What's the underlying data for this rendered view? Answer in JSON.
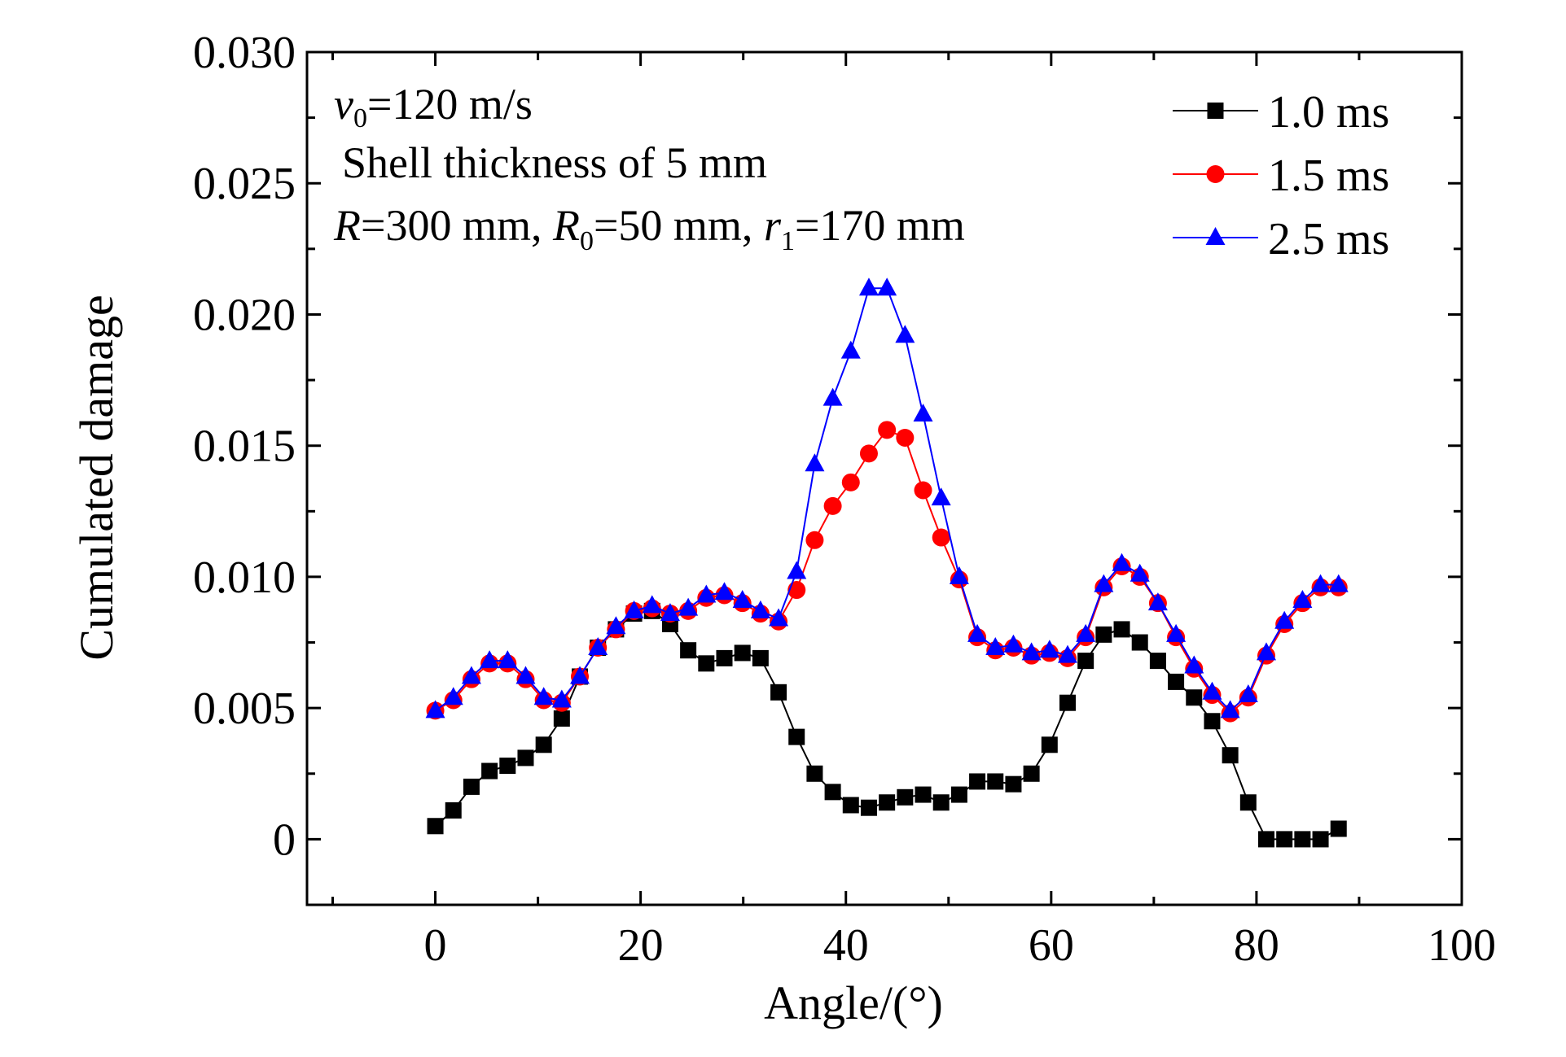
{
  "chart_data": {
    "type": "line",
    "xlabel": "Angle/(°)",
    "ylabel": "Cumulated damage",
    "xlim": [
      -12.5,
      100
    ],
    "ylim": [
      -0.0025,
      0.03
    ],
    "xticks": [
      0,
      20,
      40,
      60,
      80,
      100
    ],
    "xtick_labels": [
      "0",
      "20",
      "40",
      "60",
      "80",
      "100"
    ],
    "yticks": [
      0,
      0.005,
      0.01,
      0.015,
      0.02,
      0.025,
      0.03
    ],
    "ytick_labels": [
      "0",
      "0.005",
      "0.010",
      "0.015",
      "0.020",
      "0.025",
      "0.030"
    ],
    "grid": false,
    "legend_position": "top-right",
    "annotations": {
      "line1_var": "v",
      "line1_sub": "0",
      "line1_rest": "=120 m/s",
      "line2": "Shell thickness of 5 mm",
      "line3_R": "R",
      "line3_a": "=300 mm, ",
      "line3_R0": "R",
      "line3_R0_sub": "0",
      "line3_b": "=50 mm, ",
      "line3_r1": "r",
      "line3_r1_sub": "1",
      "line3_c": "=170 mm"
    },
    "x": [
      0,
      1.76,
      3.52,
      5.28,
      7.04,
      8.8,
      10.56,
      12.32,
      14.08,
      15.84,
      17.6,
      19.36,
      21.12,
      22.88,
      24.64,
      26.4,
      28.16,
      29.92,
      31.68,
      33.44,
      35.2,
      36.96,
      38.72,
      40.48,
      42.24,
      44.0,
      45.76,
      47.52,
      49.28,
      51.04,
      52.8,
      54.56,
      56.32,
      58.08,
      59.84,
      61.6,
      63.36,
      65.12,
      66.88,
      68.64,
      70.4,
      72.16,
      73.92,
      75.68,
      77.44,
      79.2,
      80.96,
      82.72,
      84.48,
      86.24,
      88.0
    ],
    "series": [
      {
        "name": "1.0 ms",
        "color": "#000000",
        "marker": "square",
        "values": [
          0.0005,
          0.0011,
          0.002,
          0.0026,
          0.0028,
          0.0031,
          0.0036,
          0.0046,
          0.0062,
          0.0073,
          0.008,
          0.0086,
          0.0087,
          0.0082,
          0.0072,
          0.0067,
          0.0069,
          0.0071,
          0.0069,
          0.0056,
          0.0039,
          0.0025,
          0.0018,
          0.0013,
          0.0012,
          0.0014,
          0.0016,
          0.0017,
          0.0014,
          0.0017,
          0.0022,
          0.0022,
          0.0021,
          0.0025,
          0.0036,
          0.0052,
          0.0068,
          0.0078,
          0.008,
          0.0075,
          0.0068,
          0.006,
          0.0054,
          0.0045,
          0.0032,
          0.0014,
          0.0,
          0.0,
          0.0,
          0.0,
          0.0004
        ]
      },
      {
        "name": "1.5 ms",
        "color": "#ff0000",
        "marker": "circle",
        "values": [
          0.0049,
          0.0053,
          0.0061,
          0.0067,
          0.0067,
          0.0061,
          0.0053,
          0.0052,
          0.0062,
          0.0073,
          0.008,
          0.0087,
          0.0088,
          0.0086,
          0.0087,
          0.0092,
          0.0093,
          0.009,
          0.0086,
          0.0083,
          0.0095,
          0.0114,
          0.0127,
          0.0136,
          0.0147,
          0.0156,
          0.0153,
          0.0133,
          0.0115,
          0.0099,
          0.0077,
          0.0072,
          0.0073,
          0.007,
          0.0071,
          0.0069,
          0.0077,
          0.0096,
          0.0104,
          0.01,
          0.009,
          0.0077,
          0.0065,
          0.0055,
          0.0048,
          0.0054,
          0.007,
          0.0082,
          0.009,
          0.0096,
          0.0096
        ]
      },
      {
        "name": "2.5 ms",
        "color": "#0000ff",
        "marker": "triangle",
        "values": [
          0.0049,
          0.0054,
          0.0062,
          0.0068,
          0.0068,
          0.0062,
          0.0054,
          0.0053,
          0.0062,
          0.0073,
          0.0081,
          0.0087,
          0.0089,
          0.0086,
          0.0088,
          0.0093,
          0.0094,
          0.0091,
          0.0087,
          0.0084,
          0.0102,
          0.0143,
          0.0168,
          0.0186,
          0.021,
          0.021,
          0.0192,
          0.0162,
          0.013,
          0.01,
          0.0078,
          0.0073,
          0.0074,
          0.0071,
          0.0072,
          0.007,
          0.0078,
          0.0097,
          0.0105,
          0.0101,
          0.009,
          0.0078,
          0.0066,
          0.0056,
          0.0049,
          0.0055,
          0.0071,
          0.0083,
          0.0091,
          0.0097,
          0.0097
        ]
      }
    ]
  }
}
